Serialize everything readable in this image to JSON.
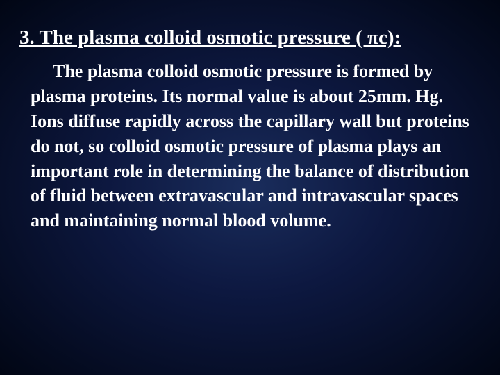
{
  "slide": {
    "heading": "3. The plasma colloid osmotic pressure ( πc):",
    "body": "The plasma colloid osmotic pressure is formed by plasma proteins. Its normal value is about 25mm. Hg. Ions diffuse rapidly across the capillary wall but proteins do not, so colloid osmotic pressure of plasma plays an important role in determining the balance of distribution of fluid between extravascular and intravascular spaces and maintaining normal blood volume.",
    "colors": {
      "background_center": "#1a2d5c",
      "background_mid": "#0d1840",
      "background_edge": "#010614",
      "text": "#ffffff"
    },
    "typography": {
      "heading_fontsize": 29,
      "body_fontsize": 26,
      "font_family": "Times New Roman",
      "font_weight": "bold"
    }
  }
}
